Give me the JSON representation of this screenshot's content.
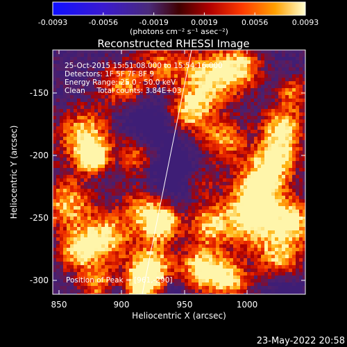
{
  "colorbar": {
    "ticks": [
      "-0.0093",
      "-0.0056",
      "-0.0019",
      "0.0019",
      "0.0056",
      "0.0093"
    ],
    "units": "(photons cm⁻² s⁻¹ asec⁻²)"
  },
  "image": {
    "title": "Reconstructed RHESSI Image",
    "info_lines": [
      "25-Oct-2015 15:51:08.000 to 15:54:16.000",
      "Detectors: 1F 5F 7F 8F 9",
      "Energy Range: 25.0 - 50.0 keV",
      "Clean     Total counts: 3.84E+03"
    ],
    "peak_label": "Position of Peak = [961,-290]",
    "x_axis": {
      "label": "Heliocentric X (arcsec)",
      "range": [
        850,
        1040
      ],
      "ticks": [
        "850",
        "900",
        "950",
        "1000"
      ]
    },
    "y_axis": {
      "label": "Heliocentric Y (arcsec)",
      "range": [
        -310,
        -125
      ],
      "ticks": [
        "-150",
        "-200",
        "-250",
        "-300"
      ]
    }
  },
  "footer": {
    "date": "23-May-2022 20:58"
  }
}
